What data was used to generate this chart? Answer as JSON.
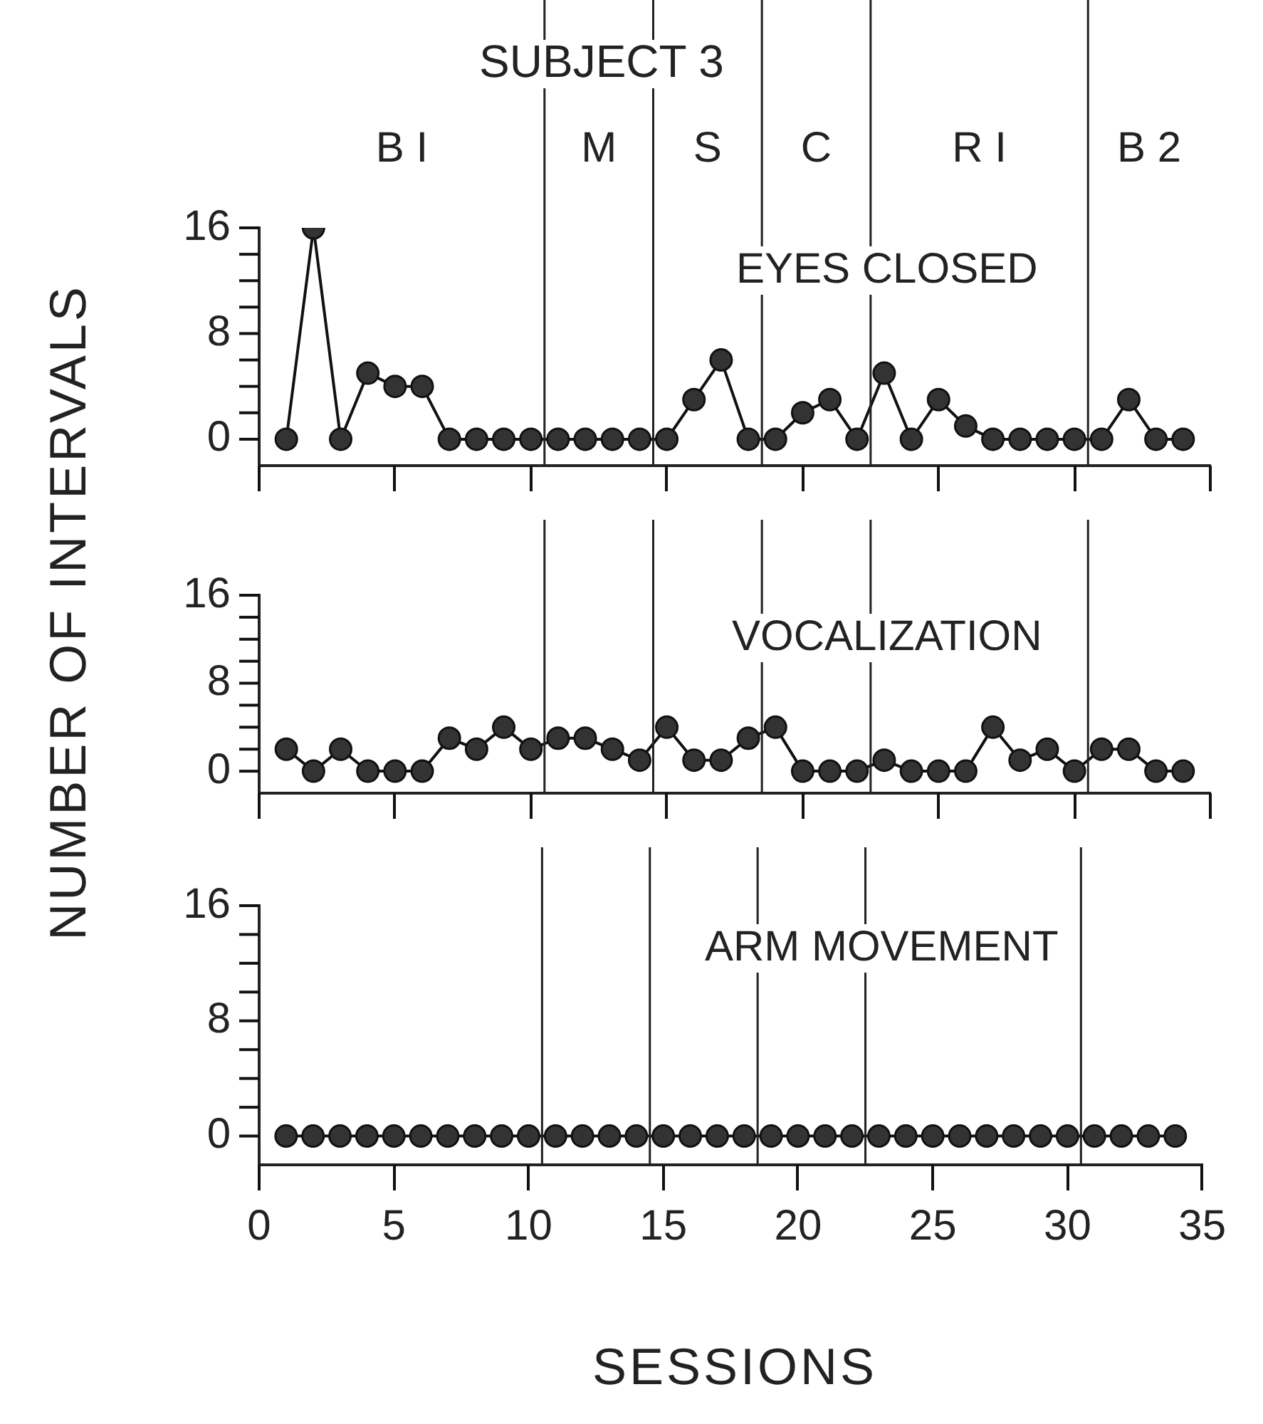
{
  "chart_data": [
    {
      "type": "line",
      "title": "EYES CLOSED",
      "x": [
        1,
        2,
        3,
        4,
        5,
        6,
        7,
        8,
        9,
        10,
        11,
        12,
        13,
        14,
        15,
        16,
        17,
        18,
        19,
        20,
        21,
        22,
        23,
        24,
        25,
        26,
        27,
        28,
        29,
        30,
        31,
        32,
        33,
        34
      ],
      "series": [
        {
          "color": "#333333",
          "values": [
            0,
            16,
            0,
            5,
            4,
            4,
            0,
            0,
            0,
            0,
            0,
            0,
            0,
            0,
            0,
            3,
            6,
            0,
            0,
            2,
            3,
            0,
            5,
            0,
            3,
            1,
            0,
            0,
            0,
            0,
            0,
            3,
            0,
            0
          ]
        }
      ],
      "xlim": [
        0,
        35
      ],
      "ylim": [
        -2,
        16
      ],
      "xticks": [
        0,
        5,
        10,
        15,
        20,
        25,
        30,
        35
      ],
      "yticks": [
        0,
        {
          "value": 2,
          "label": null
        },
        {
          "value": 4,
          "label": null
        },
        {
          "value": 6,
          "label": null
        },
        8,
        {
          "value": 10,
          "label": null
        },
        {
          "value": 12,
          "label": null
        },
        {
          "value": 14,
          "label": null
        },
        16
      ],
      "tick_labels": "y",
      "marker": "circle",
      "line_style": "solid",
      "ref_lines": [
        {
          "axis": "x",
          "value": 10.5
        },
        {
          "axis": "x",
          "value": 14.5
        },
        {
          "axis": "x",
          "value": 18.5
        },
        {
          "axis": "x",
          "value": 22.5
        },
        {
          "axis": "x",
          "value": 30.5
        }
      ],
      "annotations": [
        "SUBJECT 3",
        "B I",
        "M",
        "S",
        "C",
        "R I",
        "B 2"
      ]
    },
    {
      "type": "line",
      "title": "VOCALIZATION",
      "ylabel": "NUMBER OF INTERVALS",
      "x": [
        1,
        2,
        3,
        4,
        5,
        6,
        7,
        8,
        9,
        10,
        11,
        12,
        13,
        14,
        15,
        16,
        17,
        18,
        19,
        20,
        21,
        22,
        23,
        24,
        25,
        26,
        27,
        28,
        29,
        30,
        31,
        32,
        33,
        34
      ],
      "series": [
        {
          "color": "#333333",
          "values": [
            2,
            0,
            2,
            0,
            0,
            0,
            3,
            2,
            4,
            2,
            3,
            3,
            2,
            1,
            4,
            1,
            1,
            3,
            4,
            0,
            0,
            0,
            1,
            0,
            0,
            0,
            4,
            1,
            2,
            0,
            2,
            2,
            0,
            0
          ]
        }
      ],
      "xlim": [
        0,
        35
      ],
      "ylim": [
        -2,
        16
      ],
      "xticks": [
        0,
        5,
        10,
        15,
        20,
        25,
        30,
        35
      ],
      "yticks": [
        0,
        {
          "value": 2,
          "label": null
        },
        {
          "value": 4,
          "label": null
        },
        {
          "value": 6,
          "label": null
        },
        8,
        {
          "value": 10,
          "label": null
        },
        {
          "value": 12,
          "label": null
        },
        {
          "value": 14,
          "label": null
        },
        16
      ],
      "tick_labels": "y",
      "marker": "circle",
      "line_style": "solid",
      "ref_lines": [
        {
          "axis": "x",
          "value": 10.5
        },
        {
          "axis": "x",
          "value": 14.5
        },
        {
          "axis": "x",
          "value": 18.5
        },
        {
          "axis": "x",
          "value": 22.5
        },
        {
          "axis": "x",
          "value": 30.5
        }
      ]
    },
    {
      "type": "line",
      "title": "ARM MOVEMENT",
      "xlabel": "SESSIONS",
      "x": [
        1,
        2,
        3,
        4,
        5,
        6,
        7,
        8,
        9,
        10,
        11,
        12,
        13,
        14,
        15,
        16,
        17,
        18,
        19,
        20,
        21,
        22,
        23,
        24,
        25,
        26,
        27,
        28,
        29,
        30,
        31,
        32,
        33,
        34
      ],
      "series": [
        {
          "color": "#333333",
          "values": [
            0,
            0,
            0,
            0,
            0,
            0,
            0,
            0,
            0,
            0,
            0,
            0,
            0,
            0,
            0,
            0,
            0,
            0,
            0,
            0,
            0,
            0,
            0,
            0,
            0,
            0,
            0,
            0,
            0,
            0,
            0,
            0,
            0,
            0
          ]
        }
      ],
      "xlim": [
        0,
        35
      ],
      "ylim": [
        -2,
        16
      ],
      "xticks": [
        0,
        5,
        10,
        15,
        20,
        25,
        30,
        35
      ],
      "yticks": [
        0,
        {
          "value": 2,
          "label": null
        },
        {
          "value": 4,
          "label": null
        },
        {
          "value": 6,
          "label": null
        },
        8,
        {
          "value": 10,
          "label": null
        },
        {
          "value": 12,
          "label": null
        },
        {
          "value": 14,
          "label": null
        },
        16
      ],
      "marker": "circle",
      "line_style": "solid",
      "ref_lines": [
        {
          "axis": "x",
          "value": 10.5
        },
        {
          "axis": "x",
          "value": 14.5
        },
        {
          "axis": "x",
          "value": 18.5
        },
        {
          "axis": "x",
          "value": 22.5
        },
        {
          "axis": "x",
          "value": 30.5
        }
      ]
    }
  ]
}
